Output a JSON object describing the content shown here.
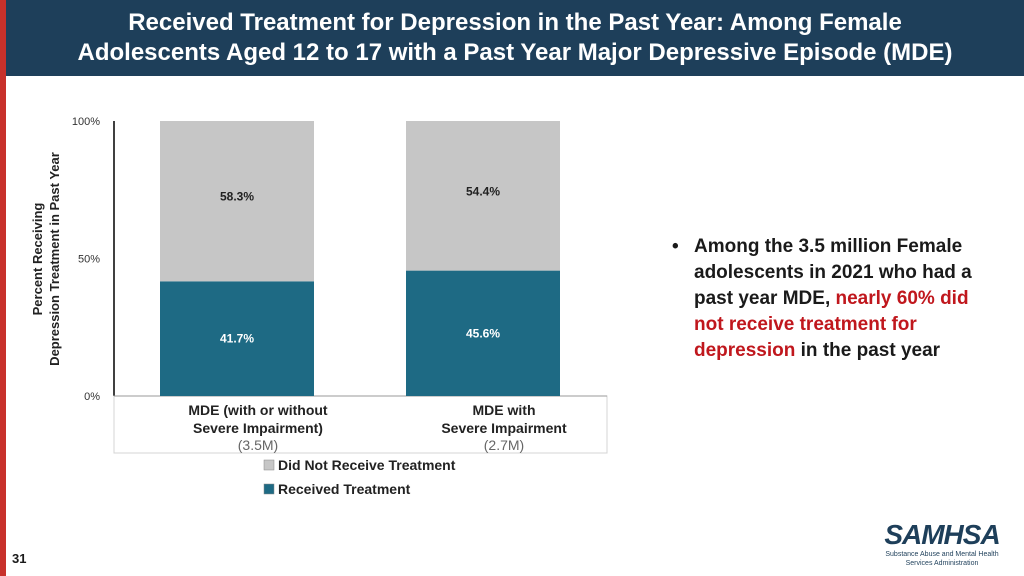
{
  "title": {
    "line1": "Received Treatment for Depression in the Past Year: Among Female",
    "line2": "Adolescents Aged 12 to 17 with a Past Year Major Depressive Episode (MDE)"
  },
  "chart_data": {
    "type": "bar",
    "stacked": true,
    "title": "",
    "ylabel_lines": [
      "Percent Receiving",
      "Depression Treatment in Past Year"
    ],
    "ylim": [
      0,
      100
    ],
    "yticks": [
      "0%",
      "50%",
      "100%"
    ],
    "categories": [
      {
        "lines": [
          "MDE (with or without",
          "Severe Impairment)"
        ],
        "count": "(3.5M)"
      },
      {
        "lines": [
          "MDE with",
          "Severe Impairment"
        ],
        "count": "(2.7M)"
      }
    ],
    "series": [
      {
        "name": "Received Treatment",
        "values": [
          41.7,
          45.6
        ],
        "labels": [
          "41.7%",
          "45.6%"
        ],
        "color": "#1e6a84"
      },
      {
        "name": "Did Not Receive Treatment",
        "values": [
          58.3,
          54.4
        ],
        "labels": [
          "58.3%",
          "54.4%"
        ],
        "color": "#c6c6c6"
      }
    ],
    "legend_order": [
      "Did Not Receive Treatment",
      "Received Treatment"
    ],
    "legend_position": "bottom"
  },
  "bullet": {
    "marker": "•",
    "pre": "Among the 3.5 million Female adolescents in 2021 who had a past year MDE, ",
    "highlight": "nearly 60% did not receive treatment for depression",
    "post": " in the past year",
    "highlight_color": "#c0171d"
  },
  "page_number": "31",
  "logo": {
    "name": "SAMHSA",
    "subtitle_line1": "Substance Abuse and Mental Health",
    "subtitle_line2": "Services Administration"
  }
}
